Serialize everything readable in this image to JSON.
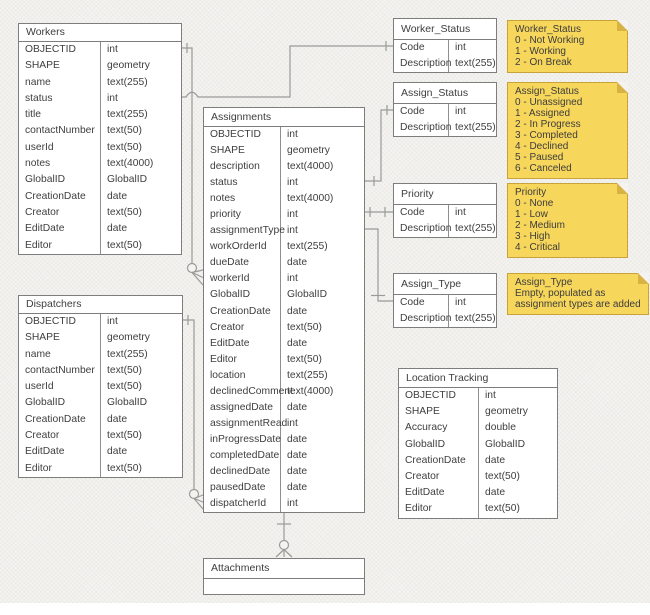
{
  "canvas": {
    "background": "#f4f3f0",
    "table_fill": "#ffffff",
    "table_border": "#7d7d7d",
    "text_color": "#3e3e3e",
    "line_color": "#9a9a9a",
    "note_fill": "#f7d65c",
    "note_border": "#c8a33a",
    "note_fold": "#d8b243"
  },
  "tables": {
    "workers": {
      "title": "Workers",
      "fields": [
        [
          "OBJECTID",
          "int"
        ],
        [
          "SHAPE",
          "geometry"
        ],
        [
          "name",
          "text(255)"
        ],
        [
          "status",
          "int"
        ],
        [
          "title",
          "text(255)"
        ],
        [
          "contactNumber",
          "text(50)"
        ],
        [
          "userId",
          "text(50)"
        ],
        [
          "notes",
          "text(4000)"
        ],
        [
          "GlobalID",
          "GlobalID"
        ],
        [
          "CreationDate",
          "date"
        ],
        [
          "Creator",
          "text(50)"
        ],
        [
          "EditDate",
          "date"
        ],
        [
          "Editor",
          "text(50)"
        ]
      ]
    },
    "dispatchers": {
      "title": "Dispatchers",
      "fields": [
        [
          "OBJECTID",
          "int"
        ],
        [
          "SHAPE",
          "geometry"
        ],
        [
          "name",
          "text(255)"
        ],
        [
          "contactNumber",
          "text(50)"
        ],
        [
          "userId",
          "text(50)"
        ],
        [
          "GlobalID",
          "GlobalID"
        ],
        [
          "CreationDate",
          "date"
        ],
        [
          "Creator",
          "text(50)"
        ],
        [
          "EditDate",
          "date"
        ],
        [
          "Editor",
          "text(50)"
        ]
      ]
    },
    "assignments": {
      "title": "Assignments",
      "fields": [
        [
          "OBJECTID",
          "int"
        ],
        [
          "SHAPE",
          "geometry"
        ],
        [
          "description",
          "text(4000)"
        ],
        [
          "status",
          "int"
        ],
        [
          "notes",
          "text(4000)"
        ],
        [
          "priority",
          "int"
        ],
        [
          "assignmentType",
          "int"
        ],
        [
          "workOrderId",
          "text(255)"
        ],
        [
          "dueDate",
          "date"
        ],
        [
          "workerId",
          "int"
        ],
        [
          "GlobalID",
          "GlobalID"
        ],
        [
          "CreationDate",
          "date"
        ],
        [
          "Creator",
          "text(50)"
        ],
        [
          "EditDate",
          "date"
        ],
        [
          "Editor",
          "text(50)"
        ],
        [
          "location",
          "text(255)"
        ],
        [
          "declinedComment",
          "text(4000)"
        ],
        [
          "assignedDate",
          "date"
        ],
        [
          "assignmentRead",
          "int"
        ],
        [
          "inProgressDate",
          "date"
        ],
        [
          "completedDate",
          "date"
        ],
        [
          "declinedDate",
          "date"
        ],
        [
          "pausedDate",
          "date"
        ],
        [
          "dispatcherId",
          "int"
        ]
      ]
    },
    "worker_status": {
      "title": "Worker_Status",
      "fields": [
        [
          "Code",
          "int"
        ],
        [
          "Description",
          "text(255)"
        ]
      ]
    },
    "assign_status": {
      "title": "Assign_Status",
      "fields": [
        [
          "Code",
          "int"
        ],
        [
          "Description",
          "text(255)"
        ]
      ]
    },
    "priority": {
      "title": "Priority",
      "fields": [
        [
          "Code",
          "int"
        ],
        [
          "Description",
          "text(255)"
        ]
      ]
    },
    "assign_type": {
      "title": "Assign_Type",
      "fields": [
        [
          "Code",
          "int"
        ],
        [
          "Description",
          "text(255)"
        ]
      ]
    },
    "location_tracking": {
      "title": "Location Tracking",
      "fields": [
        [
          "OBJECTID",
          "int"
        ],
        [
          "SHAPE",
          "geometry"
        ],
        [
          "Accuracy",
          "double"
        ],
        [
          "GlobalID",
          "GlobalID"
        ],
        [
          "CreationDate",
          "date"
        ],
        [
          "Creator",
          "text(50)"
        ],
        [
          "EditDate",
          "date"
        ],
        [
          "Editor",
          "text(50)"
        ]
      ]
    },
    "attachments": {
      "title": "Attachments",
      "fields": [
        [
          "",
          ""
        ]
      ]
    }
  },
  "notes": {
    "worker_status": {
      "lines": [
        "Worker_Status",
        "0 - Not Working",
        "1 - Working",
        "2 - On Break"
      ]
    },
    "assign_status": {
      "lines": [
        "Assign_Status",
        "0 - Unassigned",
        "1 - Assigned",
        "2 - In Progress",
        "3 - Completed",
        "4 - Declined",
        "5 - Paused",
        "6 - Canceled"
      ]
    },
    "priority": {
      "lines": [
        "Priority",
        "0 - None",
        "1 - Low",
        "2 - Medium",
        "3 - High",
        "4 - Critical"
      ]
    },
    "assign_type": {
      "lines": [
        "Assign_Type",
        "Empty, populated as",
        "assignment types are added"
      ]
    }
  }
}
